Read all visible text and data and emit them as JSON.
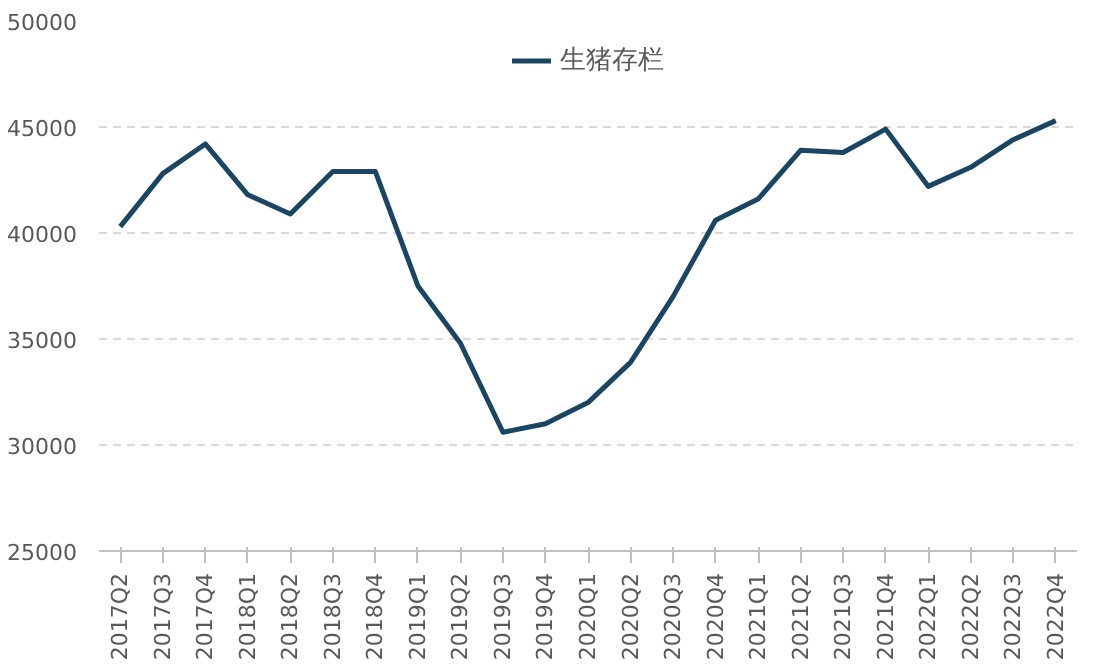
{
  "chart_data": {
    "type": "line",
    "categories": [
      "2017Q2",
      "2017Q3",
      "2017Q4",
      "2018Q1",
      "2018Q2",
      "2018Q3",
      "2018Q4",
      "2019Q1",
      "2019Q2",
      "2019Q3",
      "2019Q4",
      "2020Q1",
      "2020Q2",
      "2020Q3",
      "2020Q4",
      "2021Q1",
      "2021Q2",
      "2021Q3",
      "2021Q4",
      "2022Q1",
      "2022Q2",
      "2022Q3",
      "2022Q4"
    ],
    "series": [
      {
        "name": "生猪存栏",
        "color": "#1a4563",
        "values": [
          40300,
          42800,
          44200,
          41800,
          40900,
          42900,
          42900,
          37500,
          34800,
          30600,
          31000,
          32000,
          33900,
          37000,
          40600,
          41600,
          43900,
          43800,
          44900,
          42200,
          43100,
          44400,
          45300
        ]
      }
    ],
    "ylim": [
      25000,
      50000
    ],
    "yticks": [
      25000,
      30000,
      35000,
      40000,
      45000,
      50000
    ],
    "grid": "y",
    "legend": "top",
    "marker": "none",
    "line_style": "solid"
  }
}
